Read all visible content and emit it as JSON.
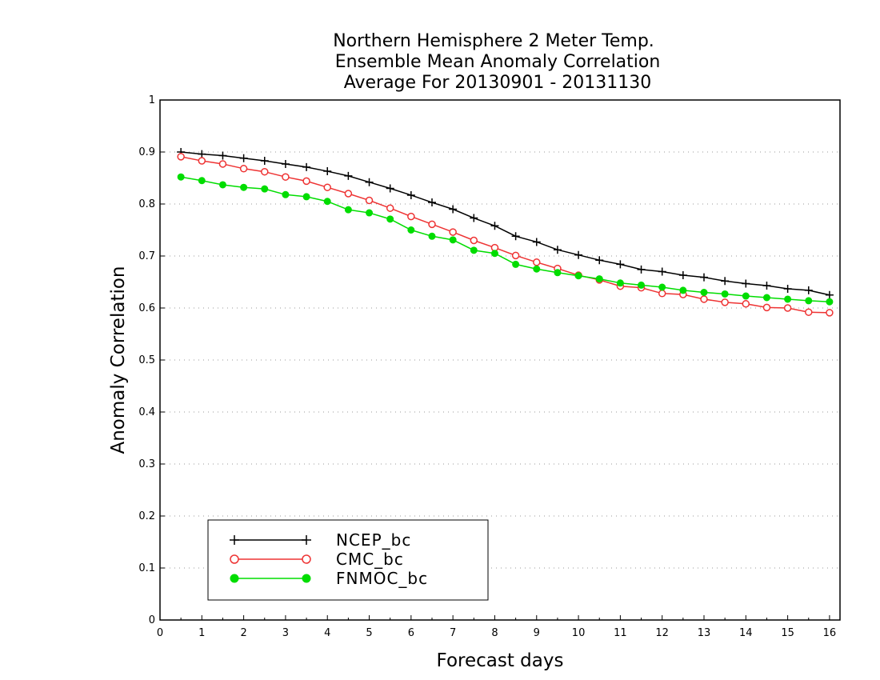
{
  "chart_data": {
    "type": "line",
    "title": [
      "Northern Hemisphere 2 Meter Temp.",
      "Ensemble Mean Anomaly Correlation",
      "Average For 20130901 - 20131130"
    ],
    "xlabel": "Forecast days",
    "ylabel": "Anomaly Correlation",
    "xlim": [
      0,
      16.25
    ],
    "ylim": [
      0,
      1
    ],
    "xticks": [
      "0",
      "1",
      "2",
      "3",
      "4",
      "5",
      "6",
      "7",
      "8",
      "9",
      "10",
      "11",
      "12",
      "13",
      "14",
      "15",
      "16"
    ],
    "yticks": [
      "0",
      "0.1",
      "0.2",
      "0.3",
      "0.4",
      "0.5",
      "0.6",
      "0.7",
      "0.8",
      "0.9",
      "1"
    ],
    "grid": true,
    "legend_position": "bottom-left",
    "x": [
      0.5,
      1,
      1.5,
      2,
      2.5,
      3,
      3.5,
      4,
      4.5,
      5,
      5.5,
      6,
      6.5,
      7,
      7.5,
      8,
      8.5,
      9,
      9.5,
      10,
      10.5,
      11,
      11.5,
      12,
      12.5,
      13,
      13.5,
      14,
      14.5,
      15,
      15.5,
      16
    ],
    "series": [
      {
        "name": "NCEP_bc",
        "color": "#000000",
        "marker": "plus",
        "values": [
          0.9,
          0.896,
          0.893,
          0.888,
          0.883,
          0.877,
          0.871,
          0.863,
          0.854,
          0.842,
          0.83,
          0.817,
          0.803,
          0.79,
          0.773,
          0.758,
          0.738,
          0.727,
          0.712,
          0.702,
          0.692,
          0.684,
          0.674,
          0.67,
          0.663,
          0.659,
          0.652,
          0.647,
          0.643,
          0.637,
          0.634,
          0.625
        ]
      },
      {
        "name": "CMC_bc",
        "color": "#ee3333",
        "marker": "open-circle",
        "values": [
          0.891,
          0.883,
          0.877,
          0.868,
          0.862,
          0.852,
          0.844,
          0.832,
          0.82,
          0.807,
          0.792,
          0.776,
          0.761,
          0.746,
          0.73,
          0.716,
          0.701,
          0.688,
          0.676,
          0.663,
          0.654,
          0.642,
          0.639,
          0.628,
          0.626,
          0.617,
          0.611,
          0.608,
          0.601,
          0.6,
          0.592,
          0.591
        ]
      },
      {
        "name": "FNMOC_bc",
        "color": "#00dd00",
        "marker": "filled-circle",
        "values": [
          0.852,
          0.845,
          0.837,
          0.832,
          0.829,
          0.818,
          0.814,
          0.805,
          0.789,
          0.783,
          0.771,
          0.75,
          0.738,
          0.731,
          0.711,
          0.705,
          0.684,
          0.675,
          0.668,
          0.662,
          0.656,
          0.648,
          0.644,
          0.64,
          0.634,
          0.63,
          0.627,
          0.623,
          0.62,
          0.617,
          0.614,
          0.612
        ]
      }
    ]
  }
}
